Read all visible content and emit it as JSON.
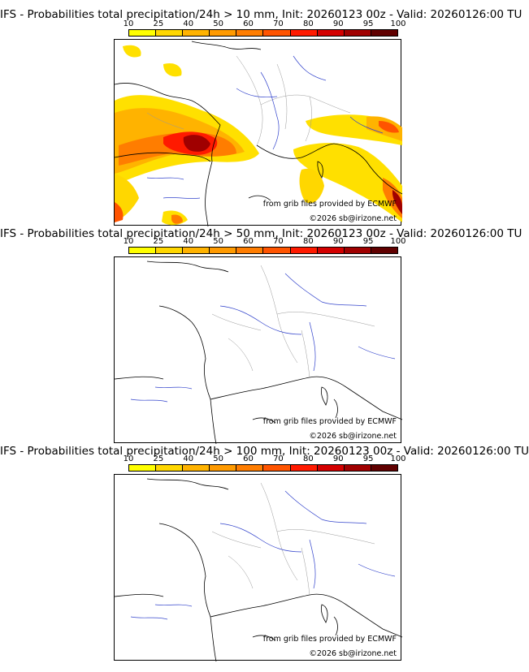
{
  "colorbar": {
    "ticks": [
      "10",
      "25",
      "40",
      "50",
      "60",
      "70",
      "80",
      "90",
      "95",
      "100"
    ],
    "colors": [
      "#ffff00",
      "#ffd700",
      "#ffb300",
      "#ff9a00",
      "#ff7d00",
      "#ff5400",
      "#ff1a00",
      "#d40000",
      "#a00000",
      "#600000"
    ]
  },
  "credits": {
    "source": "from grib files provided by ECMWF",
    "copyright": "©2026 sb@irizone.net"
  },
  "panels": [
    {
      "title": "IFS - Probabilities total precipitation/24h > 10 mm, Init: 20260123 00z - Valid: 20260126:00 TU"
    },
    {
      "title": "IFS - Probabilities total precipitation/24h > 50 mm, Init: 20260123 00z - Valid: 20260126:00 TU"
    },
    {
      "title": "IFS - Probabilities total precipitation/24h > 100 mm, Init: 20260123 00z - Valid: 20260126:00 TU"
    }
  ]
}
